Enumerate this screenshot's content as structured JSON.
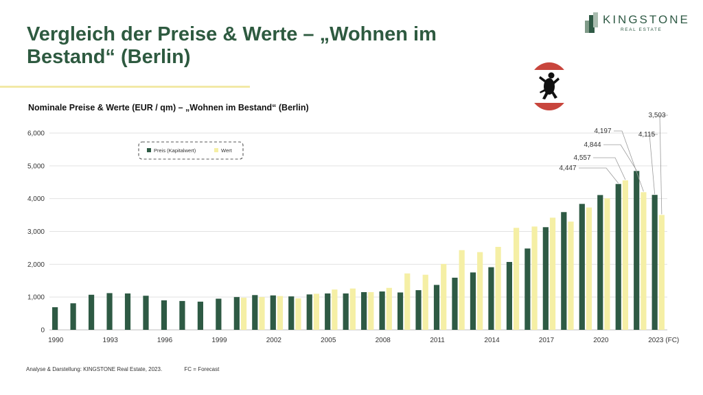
{
  "header": {
    "title": "Vergleich der Preise & Werte – „Wohnen im Bestand“ (Berlin)",
    "logo_name": "KINGSTONE",
    "logo_sub": "REAL ESTATE",
    "seal_icon": "berlin-bear-icon"
  },
  "colors": {
    "preis": "#2e5a44",
    "wert": "#f5efa5",
    "title": "#2e5a40",
    "accent_rule": "#f2e9a6"
  },
  "chart_data": {
    "type": "bar",
    "title": "Nominale Preise & Werte (EUR / qm) – „Wohnen im Bestand“ (Berlin)",
    "x": [
      "1990",
      "1991",
      "1992",
      "1993",
      "1994",
      "1995",
      "1996",
      "1997",
      "1998",
      "1999",
      "2000",
      "2001",
      "2002",
      "2003",
      "2004",
      "2005",
      "2006",
      "2007",
      "2008",
      "2009",
      "2010",
      "2011",
      "2012",
      "2013",
      "2014",
      "2015",
      "2016",
      "2017",
      "2018",
      "2019",
      "2020",
      "2021",
      "2022",
      "2023 (FC)"
    ],
    "x_tick_labels": [
      "1990",
      "",
      "",
      "1993",
      "",
      "",
      "1996",
      "",
      "",
      "1999",
      "",
      "",
      "2002",
      "",
      "",
      "2005",
      "",
      "",
      "2008",
      "",
      "",
      "2011",
      "",
      "",
      "2014",
      "",
      "",
      "2017",
      "",
      "",
      "2020",
      "",
      "",
      "2023 (FC)"
    ],
    "series": [
      {
        "name": "Preis (Kapitalwert)",
        "values": [
          690,
          810,
          1070,
          1120,
          1110,
          1040,
          900,
          880,
          860,
          950,
          1000,
          1060,
          1050,
          1020,
          1080,
          1110,
          1110,
          1150,
          1170,
          1140,
          1210,
          1370,
          1590,
          1750,
          1910,
          2070,
          2480,
          3130,
          3590,
          3840,
          4110,
          4447,
          4844,
          4115
        ]
      },
      {
        "name": "Wert",
        "values": [
          null,
          null,
          null,
          null,
          null,
          null,
          null,
          null,
          null,
          null,
          980,
          1000,
          1030,
          960,
          1100,
          1230,
          1260,
          1150,
          1280,
          1720,
          1680,
          2010,
          2430,
          2370,
          2530,
          3110,
          3150,
          3420,
          3300,
          3730,
          4010,
          4557,
          4197,
          3503
        ]
      }
    ],
    "data_labels": [
      "4,447",
      "4,557",
      "4,844",
      "4,197",
      "4,115",
      "3,503"
    ],
    "y_ticks": [
      "0",
      "1,000",
      "2,000",
      "3,000",
      "4,000",
      "5,000",
      "6,000"
    ],
    "ylim": [
      0,
      6000
    ],
    "grid": true,
    "legend": "top-left"
  },
  "footer": {
    "source": "Analyse & Darstellung: KINGSTONE Real Estate, 2023.",
    "note": "FC = Forecast"
  }
}
